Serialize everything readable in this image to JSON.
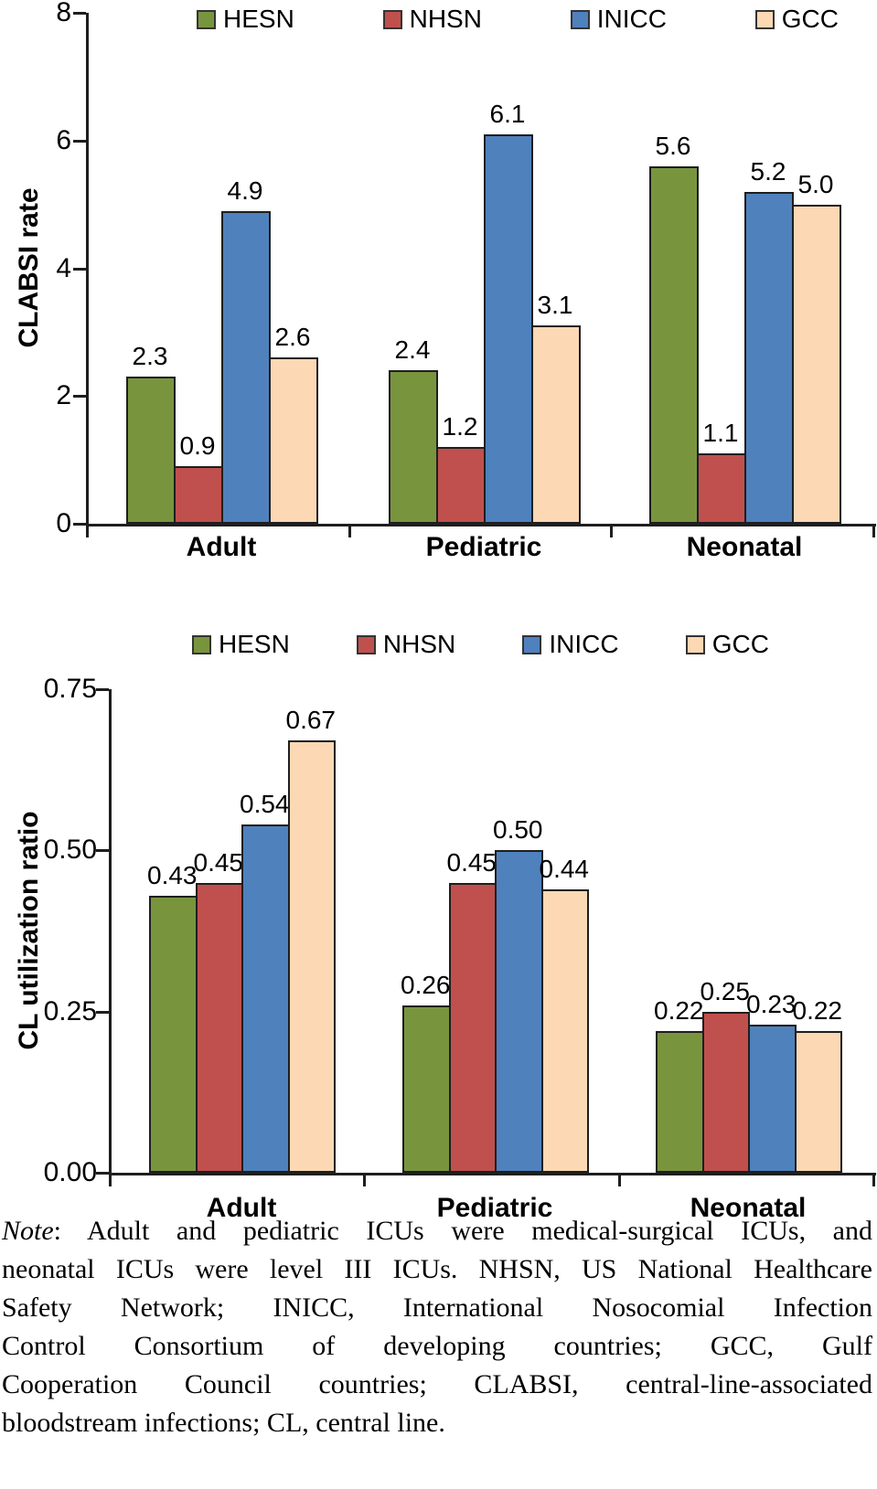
{
  "note": {
    "label": "Note",
    "lines": [
      ": Adult and pediatric ICUs were medical-surgical ICUs, and",
      "neonatal ICUs were level III ICUs. NHSN, US National Healthcare",
      "Safety Network; INICC, International Nosocomial Infection",
      "Control Consortium of developing countries; GCC, Gulf",
      "Cooperation Council countries; CLABSI, central-line-associated",
      "bloodstream infections; CL, central line."
    ]
  },
  "colors": {
    "hesn_green": "#78953E",
    "nhsn_red": "#C0504D",
    "inicc_blue": "#4F81BD",
    "gcc_peach": "#FCD8B4",
    "bar_border": "#1E1E1E",
    "axis": "#1E1E1E",
    "text": "#000000"
  },
  "chart_data": [
    {
      "type": "bar",
      "title": "",
      "ylabel": "CLABSI rate",
      "xlabel": "",
      "categories": [
        "Adult",
        "Pediatric",
        "Neonatal"
      ],
      "series": [
        {
          "name": "HESN",
          "color": "#78953E",
          "values": [
            2.3,
            2.4,
            5.6
          ],
          "labels": [
            "2.3",
            "2.4",
            "5.6"
          ]
        },
        {
          "name": "NHSN",
          "color": "#C0504D",
          "values": [
            0.9,
            1.2,
            1.1
          ],
          "labels": [
            "0.9",
            "1.2",
            "1.1"
          ]
        },
        {
          "name": "INICC",
          "color": "#4F81BD",
          "values": [
            4.9,
            6.1,
            5.2
          ],
          "labels": [
            "4.9",
            "6.1",
            "5.2"
          ]
        },
        {
          "name": "GCC",
          "color": "#FCD8B4",
          "values": [
            2.6,
            3.1,
            5.0
          ],
          "labels": [
            "2.6",
            "3.1",
            "5.0"
          ]
        }
      ],
      "ylim": [
        0,
        8
      ],
      "ytick_values": [
        0,
        2,
        4,
        6,
        8
      ],
      "ytick_labels": [
        "0",
        "2",
        "4",
        "6",
        "8"
      ],
      "legend_position": "top",
      "grid": false
    },
    {
      "type": "bar",
      "title": "",
      "ylabel": "CL utilization ratio",
      "xlabel": "",
      "categories": [
        "Adult",
        "Pediatric",
        "Neonatal"
      ],
      "series": [
        {
          "name": "HESN",
          "color": "#78953E",
          "values": [
            0.43,
            0.26,
            0.22
          ],
          "labels": [
            "0.43",
            "0.26",
            "0.22"
          ]
        },
        {
          "name": "NHSN",
          "color": "#C0504D",
          "values": [
            0.45,
            0.45,
            0.25
          ],
          "labels": [
            "0.45",
            "0.45",
            "0.25"
          ]
        },
        {
          "name": "INICC",
          "color": "#4F81BD",
          "values": [
            0.54,
            0.5,
            0.23
          ],
          "labels": [
            "0.54",
            "0.50",
            "0.23"
          ]
        },
        {
          "name": "GCC",
          "color": "#FCD8B4",
          "values": [
            0.67,
            0.44,
            0.22
          ],
          "labels": [
            "0.67",
            "0.44",
            "0.22"
          ]
        }
      ],
      "ylim": [
        0,
        0.75
      ],
      "ytick_values": [
        0,
        0.25,
        0.5,
        0.75
      ],
      "ytick_labels": [
        "0.00",
        "0.25",
        "0.50",
        "0.75"
      ],
      "legend_position": "top",
      "grid": false
    }
  ]
}
